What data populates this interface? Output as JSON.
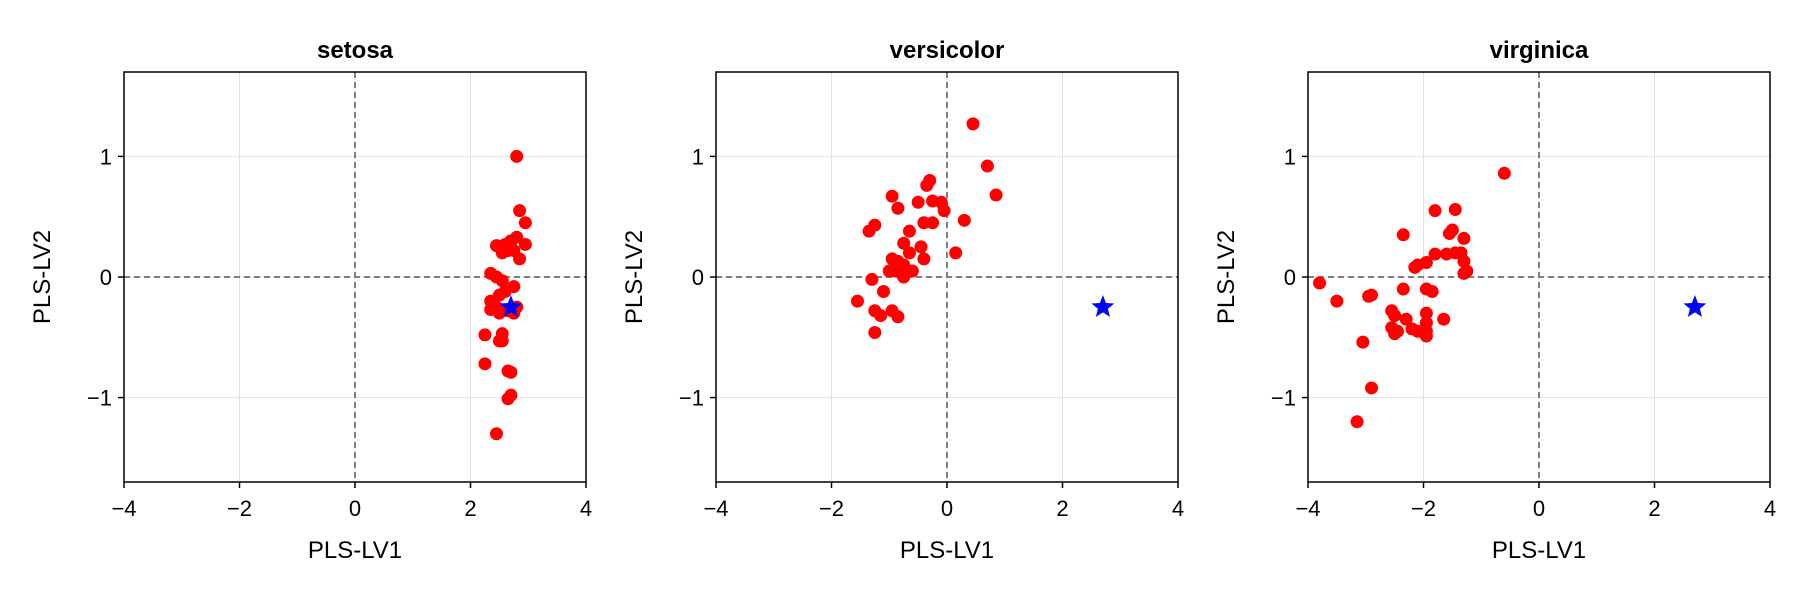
{
  "colors": {
    "sample_points": "#ff0000",
    "reference_star": "#0000ff",
    "zero_lines": "#808080",
    "grid": "#e0e0e0",
    "frame": "#000000"
  },
  "chart_data": [
    {
      "type": "scatter",
      "title": "setosa",
      "xlabel": "PLS-LV1",
      "ylabel": "PLS-LV2",
      "xlim": [
        -4,
        4
      ],
      "ylim": [
        -1.7,
        1.7
      ],
      "xticks": [
        -4,
        -2,
        0,
        2,
        4
      ],
      "yticks": [
        -1,
        0,
        1
      ],
      "xtick_labels": [
        "−4",
        "−2",
        "0",
        "2",
        "4"
      ],
      "ytick_labels": [
        "−1",
        "0",
        "1"
      ],
      "grid": true,
      "zero_lines": true,
      "marker_points": "circle",
      "marker_reference": "star",
      "points": [
        [
          2.8,
          1.0
        ],
        [
          2.85,
          0.55
        ],
        [
          2.95,
          0.45
        ],
        [
          2.95,
          0.27
        ],
        [
          2.8,
          0.33
        ],
        [
          2.7,
          0.3
        ],
        [
          2.6,
          0.27
        ],
        [
          2.45,
          0.26
        ],
        [
          2.55,
          0.2
        ],
        [
          2.65,
          0.22
        ],
        [
          2.75,
          0.22
        ],
        [
          2.85,
          0.15
        ],
        [
          2.35,
          0.03
        ],
        [
          2.45,
          0.0
        ],
        [
          2.55,
          -0.03
        ],
        [
          2.6,
          -0.12
        ],
        [
          2.75,
          -0.08
        ],
        [
          2.5,
          -0.15
        ],
        [
          2.35,
          -0.2
        ],
        [
          2.45,
          -0.25
        ],
        [
          2.35,
          -0.27
        ],
        [
          2.5,
          -0.3
        ],
        [
          2.65,
          -0.28
        ],
        [
          2.8,
          -0.25
        ],
        [
          2.75,
          -0.3
        ],
        [
          2.25,
          -0.48
        ],
        [
          2.55,
          -0.47
        ],
        [
          2.5,
          -0.53
        ],
        [
          2.55,
          -0.53
        ],
        [
          2.25,
          -0.72
        ],
        [
          2.65,
          -0.78
        ],
        [
          2.7,
          -0.79
        ],
        [
          2.7,
          -0.98
        ],
        [
          2.65,
          -1.01
        ],
        [
          2.45,
          -1.3
        ]
      ],
      "reference": [
        2.7,
        -0.25
      ]
    },
    {
      "type": "scatter",
      "title": "versicolor",
      "xlabel": "PLS-LV1",
      "ylabel": "PLS-LV2",
      "xlim": [
        -4,
        4
      ],
      "ylim": [
        -1.7,
        1.7
      ],
      "xticks": [
        -4,
        -2,
        0,
        2,
        4
      ],
      "yticks": [
        -1,
        0,
        1
      ],
      "xtick_labels": [
        "−4",
        "−2",
        "0",
        "2",
        "4"
      ],
      "ytick_labels": [
        "−1",
        "0",
        "1"
      ],
      "grid": true,
      "zero_lines": true,
      "marker_points": "circle",
      "marker_reference": "star",
      "points": [
        [
          0.45,
          1.27
        ],
        [
          0.7,
          0.92
        ],
        [
          0.85,
          0.68
        ],
        [
          -0.3,
          0.8
        ],
        [
          -0.35,
          0.76
        ],
        [
          -0.95,
          0.67
        ],
        [
          -0.5,
          0.62
        ],
        [
          -0.25,
          0.63
        ],
        [
          -0.1,
          0.62
        ],
        [
          -0.85,
          0.57
        ],
        [
          -0.05,
          0.55
        ],
        [
          0.3,
          0.47
        ],
        [
          -0.4,
          0.45
        ],
        [
          -0.25,
          0.45
        ],
        [
          -1.25,
          0.43
        ],
        [
          -1.35,
          0.38
        ],
        [
          -0.65,
          0.38
        ],
        [
          -0.75,
          0.28
        ],
        [
          -0.45,
          0.25
        ],
        [
          -0.65,
          0.2
        ],
        [
          0.15,
          0.2
        ],
        [
          -0.95,
          0.15
        ],
        [
          -0.85,
          0.13
        ],
        [
          -0.4,
          0.15
        ],
        [
          -1.0,
          0.05
        ],
        [
          -0.9,
          0.05
        ],
        [
          -0.75,
          0.1
        ],
        [
          -0.6,
          0.05
        ],
        [
          -0.75,
          0.0
        ],
        [
          -1.3,
          -0.02
        ],
        [
          -1.1,
          -0.12
        ],
        [
          -1.55,
          -0.2
        ],
        [
          -1.25,
          -0.28
        ],
        [
          -0.95,
          -0.28
        ],
        [
          -1.15,
          -0.32
        ],
        [
          -0.85,
          -0.33
        ],
        [
          -1.25,
          -0.46
        ]
      ],
      "reference": [
        2.7,
        -0.25
      ]
    },
    {
      "type": "scatter",
      "title": "virginica",
      "xlabel": "PLS-LV1",
      "ylabel": "PLS-LV2",
      "xlim": [
        -4,
        4
      ],
      "ylim": [
        -1.7,
        1.7
      ],
      "xticks": [
        -4,
        -2,
        0,
        2,
        4
      ],
      "yticks": [
        -1,
        0,
        1
      ],
      "xtick_labels": [
        "−4",
        "−2",
        "0",
        "2",
        "4"
      ],
      "ytick_labels": [
        "−1",
        "0",
        "1"
      ],
      "grid": true,
      "zero_lines": true,
      "marker_points": "circle",
      "marker_reference": "star",
      "points": [
        [
          -0.6,
          0.86
        ],
        [
          -1.8,
          0.55
        ],
        [
          -1.45,
          0.56
        ],
        [
          -1.5,
          0.39
        ],
        [
          -1.55,
          0.36
        ],
        [
          -2.35,
          0.35
        ],
        [
          -1.3,
          0.32
        ],
        [
          -1.35,
          0.2
        ],
        [
          -1.45,
          0.2
        ],
        [
          -1.6,
          0.19
        ],
        [
          -1.8,
          0.19
        ],
        [
          -1.95,
          0.12
        ],
        [
          -1.3,
          0.13
        ],
        [
          -2.1,
          0.1
        ],
        [
          -2.15,
          0.08
        ],
        [
          -1.25,
          0.05
        ],
        [
          -1.3,
          0.03
        ],
        [
          -1.85,
          -0.12
        ],
        [
          -1.95,
          -0.1
        ],
        [
          -2.35,
          -0.1
        ],
        [
          -2.9,
          -0.15
        ],
        [
          -2.95,
          -0.16
        ],
        [
          -3.8,
          -0.05
        ],
        [
          -3.5,
          -0.2
        ],
        [
          -2.55,
          -0.28
        ],
        [
          -2.5,
          -0.32
        ],
        [
          -1.95,
          -0.3
        ],
        [
          -2.3,
          -0.35
        ],
        [
          -1.65,
          -0.35
        ],
        [
          -1.95,
          -0.38
        ],
        [
          -2.55,
          -0.42
        ],
        [
          -2.2,
          -0.43
        ],
        [
          -2.45,
          -0.45
        ],
        [
          -2.5,
          -0.47
        ],
        [
          -1.95,
          -0.45
        ],
        [
          -2.1,
          -0.45
        ],
        [
          -1.95,
          -0.49
        ],
        [
          -3.05,
          -0.54
        ],
        [
          -2.9,
          -0.92
        ],
        [
          -3.15,
          -1.2
        ]
      ],
      "reference": [
        2.7,
        -0.25
      ]
    }
  ]
}
